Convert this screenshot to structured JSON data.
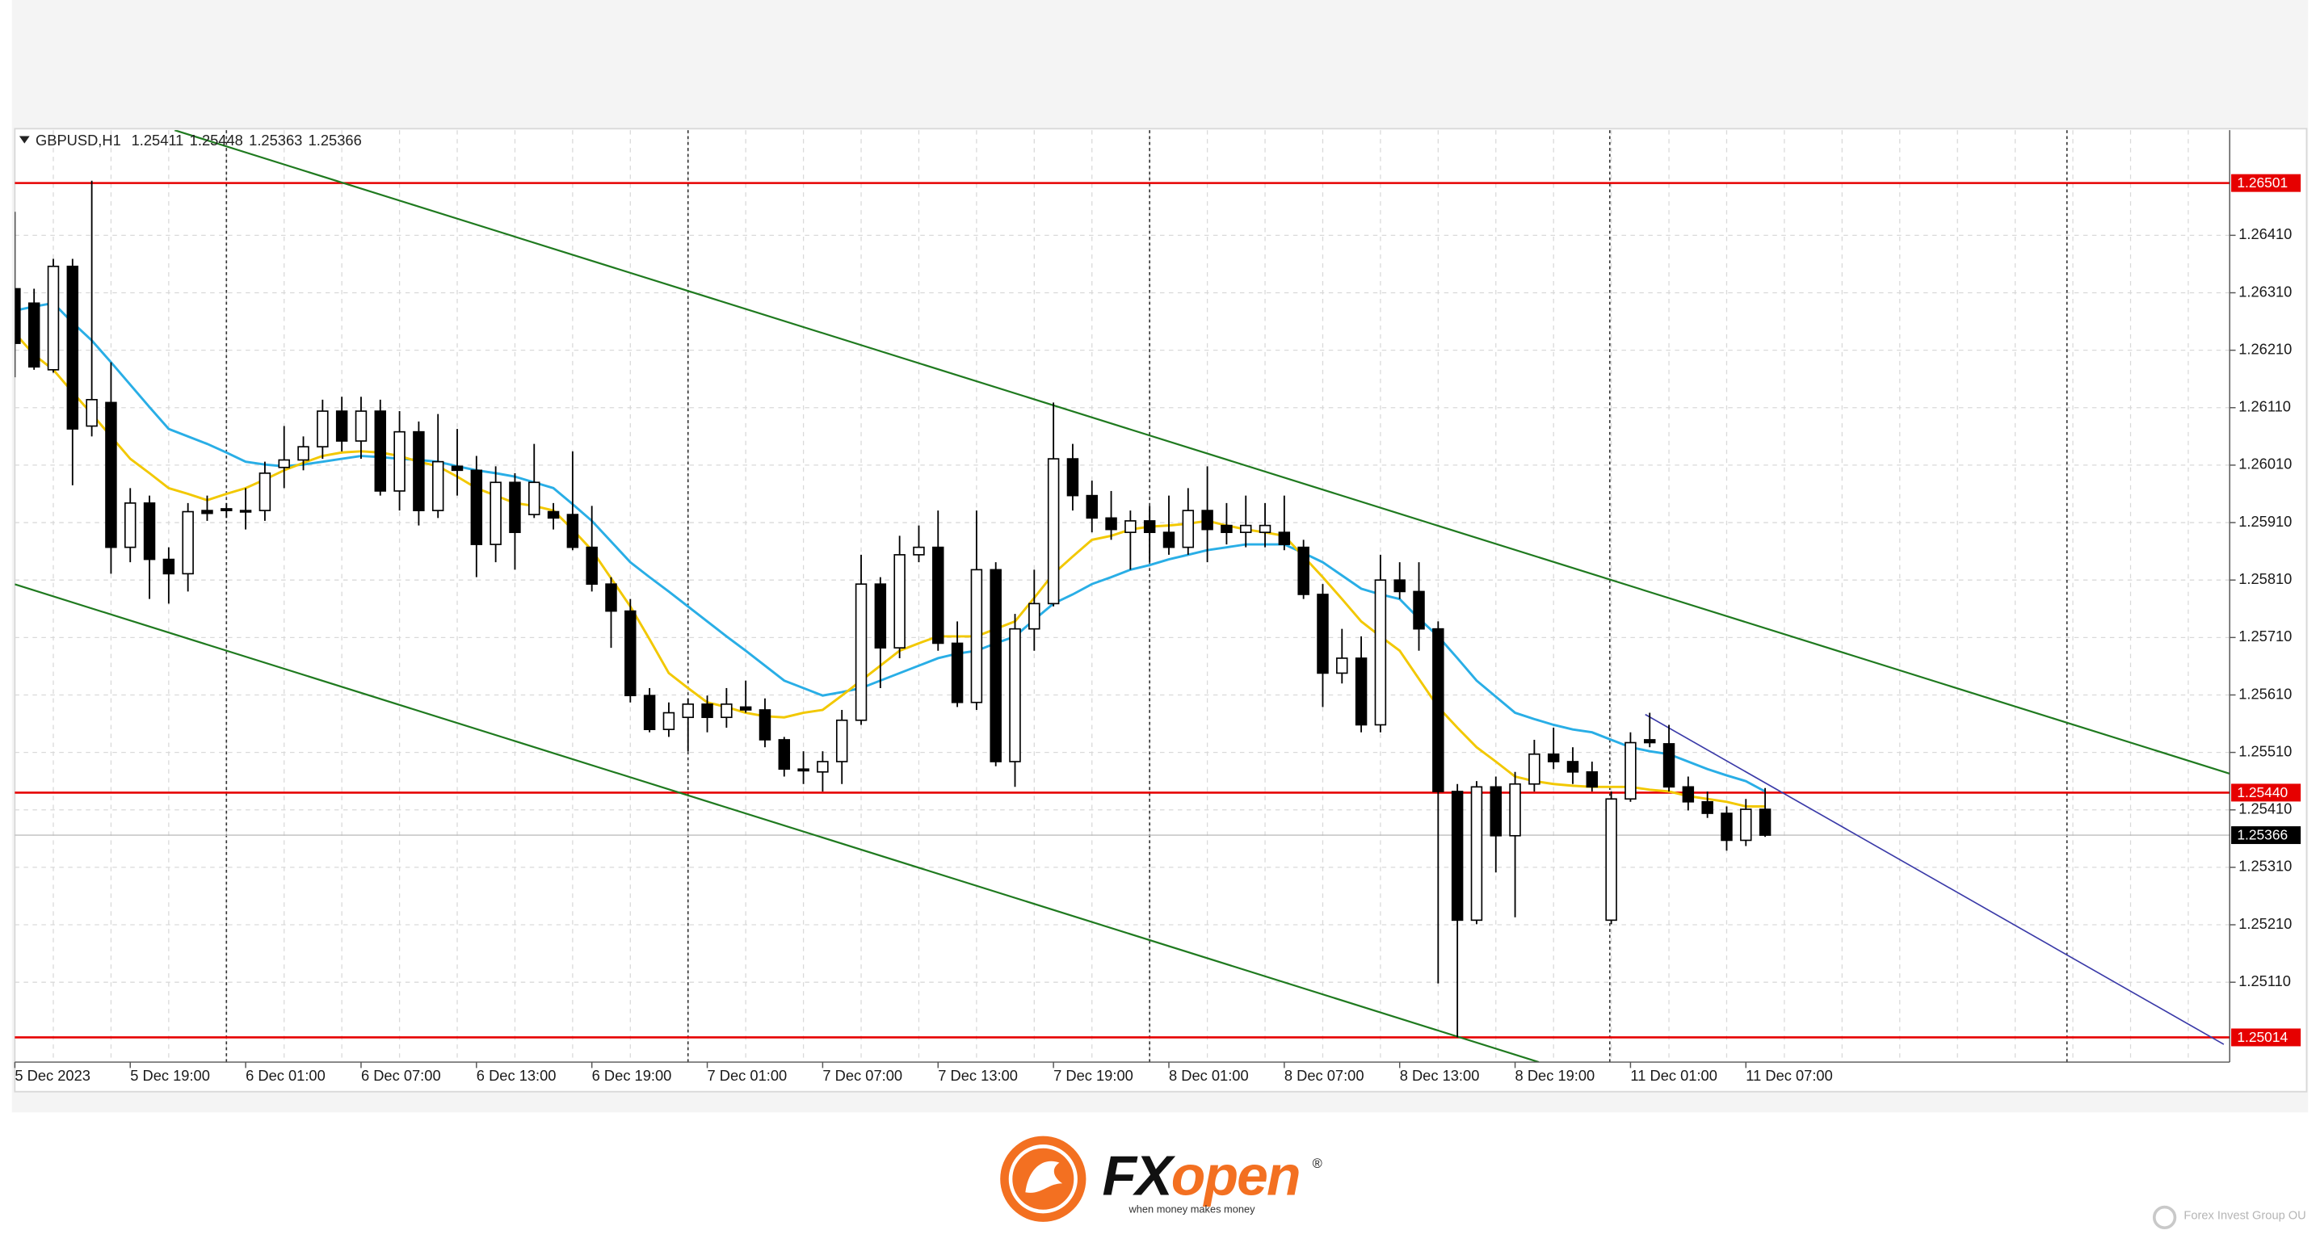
{
  "chart_data": {
    "type": "candlestick",
    "title": "GBPUSD,H1",
    "categories": [
      "5 Dec 2023",
      null,
      null,
      null,
      null,
      null,
      "5 Dec 19:00",
      null,
      null,
      null,
      null,
      null,
      "6 Dec 01:00",
      null,
      null,
      null,
      null,
      null,
      "6 Dec 07:00",
      null,
      null,
      null,
      null,
      null,
      "6 Dec 13:00",
      null,
      null,
      null,
      null,
      null,
      "6 Dec 19:00",
      null,
      null,
      null,
      null,
      null,
      "7 Dec 01:00",
      null,
      null,
      null,
      null,
      null,
      "7 Dec 07:00",
      null,
      null,
      null,
      null,
      null,
      "7 Dec 13:00",
      null,
      null,
      null,
      null,
      null,
      "7 Dec 19:00",
      null,
      null,
      null,
      null,
      null,
      "8 Dec 01:00",
      null,
      null,
      null,
      null,
      null,
      "8 Dec 07:00",
      null,
      null,
      null,
      null,
      null,
      "8 Dec 13:00",
      null,
      null,
      null,
      null,
      null,
      "8 Dec 19:00",
      null,
      null,
      null,
      null,
      null,
      "11 Dec 01:00",
      null,
      null,
      null,
      null,
      null,
      "11 Dec 07:00",
      null
    ],
    "open": [
      1.26317,
      1.26292,
      1.26176,
      1.26356,
      1.26078,
      1.26119,
      1.25867,
      1.25944,
      1.25846,
      1.25821,
      1.25931,
      1.25934,
      1.25931,
      1.25931,
      1.26006,
      1.26019,
      1.26042,
      1.26104,
      1.26052,
      1.26104,
      1.25965,
      1.26068,
      1.25931,
      1.26008,
      1.26001,
      1.25872,
      1.2598,
      1.25924,
      1.25929,
      1.25924,
      1.25867,
      1.25803,
      1.25756,
      1.25609,
      1.2555,
      1.25571,
      1.25594,
      1.25571,
      1.25589,
      1.25584,
      1.25532,
      1.25481,
      1.25476,
      1.25494,
      1.25566,
      1.25803,
      1.25692,
      1.25854,
      1.25867,
      1.257,
      1.25597,
      1.25828,
      1.25494,
      1.25725,
      1.25769,
      1.26021,
      1.25957,
      1.25918,
      1.25893,
      1.25913,
      1.25893,
      1.25867,
      1.25931,
      1.25905,
      1.25893,
      1.25893,
      1.25893,
      1.25867,
      1.25785,
      1.25648,
      1.25674,
      1.25558,
      1.2581,
      1.2579,
      1.25725,
      1.25442,
      1.25218,
      1.2545,
      1.25365,
      1.25455,
      1.25507,
      1.25494,
      1.25476,
      1.25218,
      1.25429,
      1.25532,
      1.25525,
      1.2545,
      1.25424,
      1.25404,
      1.25357,
      1.25411
    ],
    "high": [
      1.26451,
      1.26317,
      1.26369,
      1.26369,
      1.26505,
      1.26189,
      1.2597,
      1.25957,
      1.25867,
      1.25944,
      1.25957,
      1.25944,
      1.2597,
      1.26016,
      1.26078,
      1.2606,
      1.26124,
      1.26129,
      1.26129,
      1.26124,
      1.26104,
      1.26086,
      1.26099,
      1.26073,
      1.26026,
      1.26008,
      1.25996,
      1.26047,
      1.25944,
      1.26034,
      1.25939,
      1.25815,
      1.25777,
      1.25622,
      1.25597,
      1.25604,
      1.25609,
      1.25622,
      1.25635,
      1.25604,
      1.25537,
      1.25512,
      1.25512,
      1.25584,
      1.25854,
      1.25815,
      1.25887,
      1.25905,
      1.25931,
      1.25738,
      1.25931,
      1.25841,
      1.25751,
      1.25828,
      1.26119,
      1.26047,
      1.25983,
      1.25965,
      1.25931,
      1.25939,
      1.25957,
      1.2597,
      1.26008,
      1.25944,
      1.25957,
      1.25944,
      1.25957,
      1.2588,
      1.25803,
      1.25725,
      1.25712,
      1.25854,
      1.25841,
      1.25841,
      1.25738,
      1.25455,
      1.2546,
      1.25468,
      1.25476,
      1.25532,
      1.25553,
      1.25519,
      1.25494,
      1.25442,
      1.25545,
      1.25579,
      1.25558,
      1.25468,
      1.25442,
      1.25416,
      1.25429,
      1.25448
    ],
    "low": [
      1.26163,
      1.26176,
      1.26171,
      1.25975,
      1.2606,
      1.25821,
      1.25841,
      1.25777,
      1.25769,
      1.2579,
      1.25913,
      1.25918,
      1.25898,
      1.25913,
      1.2597,
      1.26001,
      1.26021,
      1.26034,
      1.26021,
      1.25957,
      1.25931,
      1.25905,
      1.25918,
      1.25957,
      1.25815,
      1.25841,
      1.25828,
      1.25918,
      1.25898,
      1.25862,
      1.2579,
      1.25692,
      1.25597,
      1.25545,
      1.25537,
      1.25512,
      1.25545,
      1.25553,
      1.25579,
      1.25519,
      1.25468,
      1.25455,
      1.25442,
      1.25455,
      1.25558,
      1.25622,
      1.25674,
      1.25841,
      1.25687,
      1.25589,
      1.25584,
      1.25486,
      1.2545,
      1.25687,
      1.25764,
      1.25931,
      1.25893,
      1.2588,
      1.25828,
      1.25841,
      1.25854,
      1.25854,
      1.25841,
      1.25872,
      1.25867,
      1.25867,
      1.25862,
      1.25777,
      1.25589,
      1.2563,
      1.25545,
      1.25545,
      1.25777,
      1.25687,
      1.25108,
      1.25014,
      1.25211,
      1.25301,
      1.25223,
      1.25442,
      1.25481,
      1.25455,
      1.25442,
      1.25211,
      1.25424,
      1.25519,
      1.25442,
      1.25409,
      1.25396,
      1.25339,
      1.25347,
      1.25363
    ],
    "close": [
      1.26222,
      1.26181,
      1.26356,
      1.26073,
      1.26124,
      1.25867,
      1.25944,
      1.25846,
      1.25821,
      1.25929,
      1.25926,
      1.25931,
      1.25929,
      1.25996,
      1.26019,
      1.26042,
      1.26104,
      1.26052,
      1.26104,
      1.25965,
      1.26068,
      1.25931,
      1.26016,
      1.26001,
      1.25872,
      1.2598,
      1.25893,
      1.2598,
      1.25918,
      1.25867,
      1.25803,
      1.25756,
      1.25609,
      1.2555,
      1.25579,
      1.25594,
      1.25571,
      1.25594,
      1.25584,
      1.25532,
      1.25481,
      1.25478,
      1.25494,
      1.25566,
      1.25803,
      1.25692,
      1.25854,
      1.25867,
      1.257,
      1.25597,
      1.25828,
      1.25494,
      1.25725,
      1.25769,
      1.26021,
      1.25957,
      1.25918,
      1.25898,
      1.25913,
      1.25893,
      1.25867,
      1.25931,
      1.25898,
      1.25893,
      1.25905,
      1.25905,
      1.25872,
      1.25785,
      1.25648,
      1.25674,
      1.25558,
      1.2581,
      1.2579,
      1.25725,
      1.25442,
      1.25218,
      1.2545,
      1.25365,
      1.25455,
      1.25507,
      1.25494,
      1.25476,
      1.2545,
      1.25429,
      1.25527,
      1.25527,
      1.2545,
      1.25424,
      1.25404,
      1.25357,
      1.25411,
      1.25366
    ],
    "bull_color": "#ffffff",
    "bear_color": "#000000",
    "overlays": [
      {
        "type": "line",
        "color": "#29aee6",
        "values": [
          1.26279,
          1.26286,
          1.26292,
          1.26258,
          1.26227,
          1.26189,
          1.2615,
          1.26111,
          1.26073,
          1.2606,
          1.26047,
          1.26032,
          1.26016,
          1.26011,
          1.26008,
          1.26011,
          1.26016,
          1.26021,
          1.26026,
          1.26024,
          1.26021,
          1.26019,
          1.26016,
          1.26008,
          1.26001,
          1.25996,
          1.2599,
          1.2598,
          1.2597,
          1.25942,
          1.25913,
          1.25877,
          1.25841,
          1.25815,
          1.2579,
          1.25764,
          1.25738,
          1.25712,
          1.25687,
          1.25661,
          1.25635,
          1.25622,
          1.25609,
          1.25615,
          1.25622,
          1.25635,
          1.25648,
          1.25661,
          1.25674,
          1.25682,
          1.25687,
          1.257,
          1.25712,
          1.25741,
          1.25769,
          1.25785,
          1.25803,
          1.25815,
          1.25828,
          1.25836,
          1.25846,
          1.25854,
          1.25862,
          1.25867,
          1.25872,
          1.25872,
          1.25872,
          1.25857,
          1.25841,
          1.25818,
          1.25795,
          1.25785,
          1.25777,
          1.25743,
          1.25712,
          1.25674,
          1.25635,
          1.25607,
          1.25579,
          1.25568,
          1.25558,
          1.2555,
          1.25545,
          1.25532,
          1.25519,
          1.25512,
          1.25507,
          1.25494,
          1.25481,
          1.2547,
          1.2546,
          1.25442
        ]
      },
      {
        "type": "line",
        "color": "#f2c800",
        "values": [
          1.2624,
          1.26202,
          1.26176,
          1.26137,
          1.26099,
          1.2606,
          1.26021,
          1.25996,
          1.2597,
          1.2596,
          1.25949,
          1.2596,
          1.2597,
          1.25985,
          1.26001,
          1.26014,
          1.26026,
          1.26032,
          1.26034,
          1.26032,
          1.26026,
          1.26016,
          1.26008,
          1.2599,
          1.2597,
          1.25957,
          1.25944,
          1.25939,
          1.25931,
          1.25898,
          1.25862,
          1.25813,
          1.25764,
          1.25707,
          1.25648,
          1.25622,
          1.25597,
          1.25589,
          1.25579,
          1.25573,
          1.25571,
          1.25579,
          1.25584,
          1.25609,
          1.25635,
          1.25661,
          1.25687,
          1.257,
          1.25712,
          1.25712,
          1.25712,
          1.25725,
          1.25738,
          1.25779,
          1.25821,
          1.25851,
          1.2588,
          1.25887,
          1.25898,
          1.25903,
          1.25905,
          1.25908,
          1.25913,
          1.25905,
          1.25898,
          1.25893,
          1.25887,
          1.25851,
          1.25815,
          1.25777,
          1.25738,
          1.25712,
          1.25687,
          1.25638,
          1.25589,
          1.25553,
          1.25519,
          1.25494,
          1.25468,
          1.2546,
          1.25455,
          1.25452,
          1.2545,
          1.2545,
          1.2545,
          1.25445,
          1.25442,
          1.25434,
          1.25429,
          1.25424,
          1.25416,
          1.25416
        ]
      }
    ],
    "levels": [
      {
        "price": 1.26501,
        "color": "#e60000"
      },
      {
        "price": {
          "value": 1.2544,
          "label": "1.25440"
        },
        "color": "#e60000"
      },
      {
        "price": 1.25014,
        "color": "#e60000"
      }
    ],
    "last_price_color": "#000000",
    "ylim": [
      1.24971,
      1.26593
    ],
    "yticks": [
      {
        "value": 1.2641,
        "label": "1.26410"
      },
      {
        "value": 1.2631,
        "label": "1.26310"
      },
      {
        "value": 1.2621,
        "label": "1.26210"
      },
      {
        "value": 1.2611,
        "label": "1.26110"
      },
      {
        "value": 1.2601,
        "label": "1.26010"
      },
      {
        "value": 1.2591,
        "label": "1.25910"
      },
      {
        "value": 1.2581,
        "label": "1.25810"
      },
      {
        "value": 1.2571,
        "label": "1.25710"
      },
      {
        "value": 1.2561,
        "label": "1.25610"
      },
      {
        "value": 1.2551,
        "label": "1.25510"
      },
      {
        "value": 1.2541,
        "label": "1.25410"
      },
      {
        "value": 1.2531,
        "label": "1.25310"
      },
      {
        "value": 1.2521,
        "label": "1.25210"
      },
      {
        "value": 1.2511,
        "label": "1.25110"
      }
    ],
    "grid": true
  },
  "branding": {
    "logo_fx": "FX",
    "logo_open": "open",
    "registered": "®",
    "tagline": "when money makes money",
    "watermark": "Forex Invest Group OU"
  }
}
